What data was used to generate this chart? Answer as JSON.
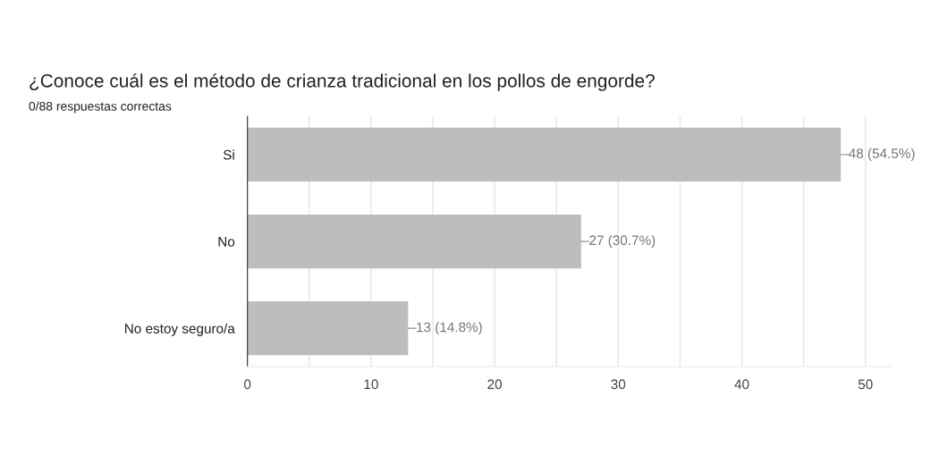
{
  "chart_data": {
    "type": "bar",
    "orientation": "horizontal",
    "title": "¿Conoce cuál es el método de crianza tradicional en los pollos de engorde?",
    "subtitle": "0/88 respuestas correctas",
    "categories": [
      "Si",
      "No",
      "No estoy seguro/a"
    ],
    "values": [
      48,
      27,
      13
    ],
    "value_labels": [
      "48 (54.5%)",
      "27 (30.7%)",
      "13 (14.8%)"
    ],
    "color": "#bdbdbd",
    "xlim": [
      0,
      52
    ],
    "xticks": [
      0,
      {
        "value": 5,
        "label": null
      },
      10,
      {
        "value": 15,
        "label": null
      },
      20,
      {
        "value": 25,
        "label": null
      },
      30,
      {
        "value": 35,
        "label": null
      },
      40,
      {
        "value": 45,
        "label": null
      },
      50
    ],
    "grid": "x"
  }
}
